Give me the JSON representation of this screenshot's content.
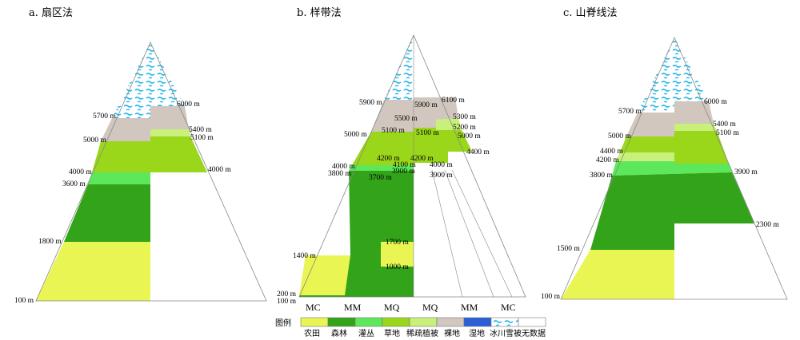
{
  "colors": {
    "farmland": "#e8f553",
    "forest": "#33a31a",
    "shrub": "#5ce85a",
    "grassland": "#9ad61a",
    "sparse": "#c8f07a",
    "bare": "#d1c7be",
    "wetland": "#2a5fd8",
    "glacier": "#2cb8e8",
    "nodata": "#ffffff"
  },
  "panels": {
    "a": {
      "title": "a. 扇区法",
      "labels": [
        "6000 m",
        "5700 m",
        "5400 m",
        "5100 m",
        "5000 m",
        "4000 m",
        "4000 m",
        "3600 m",
        "1800 m",
        "100 m"
      ]
    },
    "b": {
      "title": "b. 样带法",
      "labels": [
        "5900 m",
        "6100 m",
        "5900 m",
        "5500 m",
        "5300 m",
        "5200 m",
        "5100 m",
        "5100 m",
        "5000 m",
        "5000 m",
        "4400 m",
        "4200 m",
        "4200 m",
        "4100 m",
        "4000 m",
        "4000 m",
        "3900 m",
        "3900 m",
        "3800 m",
        "3700 m",
        "1700 m",
        "1400 m",
        "1000 m",
        "200 m",
        "100 m"
      ],
      "columns": [
        "MC",
        "MM",
        "MQ",
        "MQ",
        "MM",
        "MC"
      ]
    },
    "c": {
      "title": "c. 山脊线法",
      "labels": [
        "6000 m",
        "5700 m",
        "5400 m",
        "5100 m",
        "5000 m",
        "4400 m",
        "4200 m",
        "3900 m",
        "3800 m",
        "2300 m",
        "1500 m",
        "100 m"
      ]
    }
  },
  "legend": {
    "title": "图例",
    "items": [
      "农田",
      "森林",
      "灌丛",
      "草地",
      "稀疏植被",
      "裸地",
      "湿地",
      "冰川雪被",
      "无数据"
    ]
  }
}
